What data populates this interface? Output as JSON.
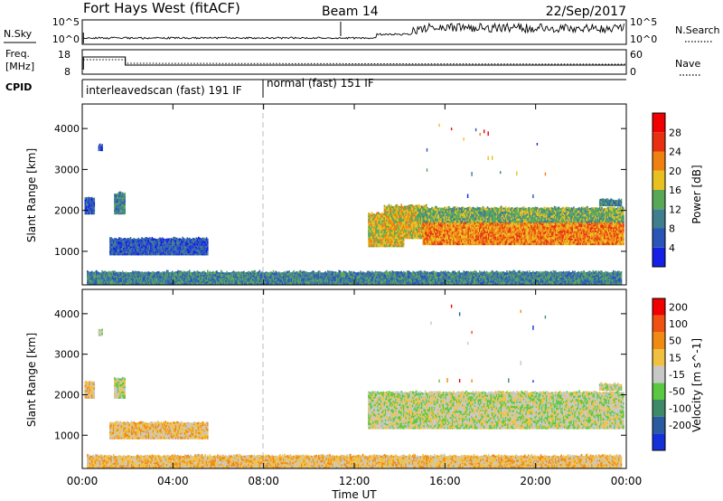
{
  "header": {
    "station": "Fort Hays West (fitACF)",
    "beam": "Beam 14",
    "date": "22/Sep/2017"
  },
  "noise_panel": {
    "left_label": "N.Sky",
    "left_ticks": [
      "10^5",
      "10^0"
    ],
    "right_ticks": [
      "10^5",
      "10^0"
    ],
    "right_label": "N.Search"
  },
  "freq_panel": {
    "left_label_1": "Freq.",
    "left_label_2": "[MHz]",
    "left_ticks": [
      "18",
      "8"
    ],
    "right_ticks": [
      "60",
      "0"
    ],
    "right_label": "Nave"
  },
  "cpid_panel": {
    "label": "CPID",
    "segments": [
      {
        "text": "interleavedscan (fast) 191 IF",
        "start_hour": 0,
        "end_hour": 8
      },
      {
        "text": "normal (fast) 151 IF",
        "start_hour": 8,
        "end_hour": 24
      }
    ]
  },
  "chart_data": [
    {
      "type": "heatmap",
      "name": "power-panel",
      "ylabel": "Slant Range [km]",
      "ylim": [
        180,
        4600
      ],
      "xlim_hours": [
        0,
        24
      ],
      "yticks": [
        1000,
        2000,
        3000,
        4000
      ],
      "colorbar": {
        "label": "Power [dB]",
        "ticks": [
          "4",
          "8",
          "12",
          "16",
          "20",
          "24",
          "28"
        ],
        "colors": [
          "#1420e6",
          "#2a55b8",
          "#3f7e8e",
          "#58a858",
          "#e8c020",
          "#f08010",
          "#e83010",
          "#f00000"
        ]
      },
      "regions": [
        {
          "t0": 0.2,
          "t1": 23.8,
          "r0": 180,
          "r1": 480,
          "level": 2
        },
        {
          "t0": 0.1,
          "t1": 0.5,
          "r0": 1900,
          "r1": 2300,
          "level": 1
        },
        {
          "t0": 1.4,
          "t1": 1.9,
          "r0": 1900,
          "r1": 2400,
          "level": 2
        },
        {
          "t0": 1.2,
          "t1": 5.5,
          "r0": 900,
          "r1": 1300,
          "level": 1
        },
        {
          "t0": 0.7,
          "t1": 0.9,
          "r0": 3450,
          "r1": 3600,
          "level": 1
        },
        {
          "t0": 12.6,
          "t1": 14.2,
          "r0": 1100,
          "r1": 1900,
          "level": 4
        },
        {
          "t0": 13.3,
          "t1": 15.2,
          "r0": 1300,
          "r1": 2100,
          "level": 4
        },
        {
          "t0": 15.0,
          "t1": 23.9,
          "r0": 1150,
          "r1": 1700,
          "level": 5
        },
        {
          "t0": 14.8,
          "t1": 23.9,
          "r0": 1700,
          "r1": 2050,
          "level": 3
        },
        {
          "t0": 22.8,
          "t1": 23.8,
          "r0": 2100,
          "r1": 2250,
          "level": 2
        },
        {
          "t0": 15.0,
          "t1": 20.5,
          "r0": 2300,
          "r1": 4500,
          "level": 3,
          "sparse": true
        }
      ]
    },
    {
      "type": "heatmap",
      "name": "velocity-panel",
      "xlabel": "Time UT",
      "ylabel": "Slant Range [km]",
      "ylim": [
        180,
        4600
      ],
      "xlim_hours": [
        0,
        24
      ],
      "yticks": [
        1000,
        2000,
        3000,
        4000
      ],
      "xticks": [
        "00:00",
        "04:00",
        "08:00",
        "12:00",
        "16:00",
        "20:00",
        "00:00"
      ],
      "colorbar": {
        "label": "Velocity [m s^-1]",
        "ticks": [
          "200",
          "100",
          "50",
          "15",
          "-15",
          "-50",
          "-100",
          "-200"
        ],
        "colors": [
          "#1430d8",
          "#2a5aa0",
          "#3e8a68",
          "#5ac840",
          "#c8c8c8",
          "#f2c040",
          "#f08a10",
          "#f05010",
          "#f00000"
        ]
      },
      "regions": [
        {
          "t0": 0.2,
          "t1": 23.8,
          "r0": 180,
          "r1": 480,
          "level": 5
        },
        {
          "t0": 0.1,
          "t1": 0.5,
          "r0": 1900,
          "r1": 2300,
          "level": 5
        },
        {
          "t0": 1.4,
          "t1": 1.9,
          "r0": 1900,
          "r1": 2400,
          "level": 4
        },
        {
          "t0": 1.2,
          "t1": 5.5,
          "r0": 900,
          "r1": 1300,
          "level": 5
        },
        {
          "t0": 0.7,
          "t1": 0.9,
          "r0": 3450,
          "r1": 3600,
          "level": 4
        },
        {
          "t0": 12.6,
          "t1": 23.9,
          "r0": 1150,
          "r1": 2050,
          "level": 4
        },
        {
          "t0": 22.8,
          "t1": 23.8,
          "r0": 2100,
          "r1": 2250,
          "level": 4
        },
        {
          "t0": 15.0,
          "t1": 20.5,
          "r0": 2300,
          "r1": 4500,
          "level": 0,
          "sparse": true
        }
      ]
    }
  ]
}
